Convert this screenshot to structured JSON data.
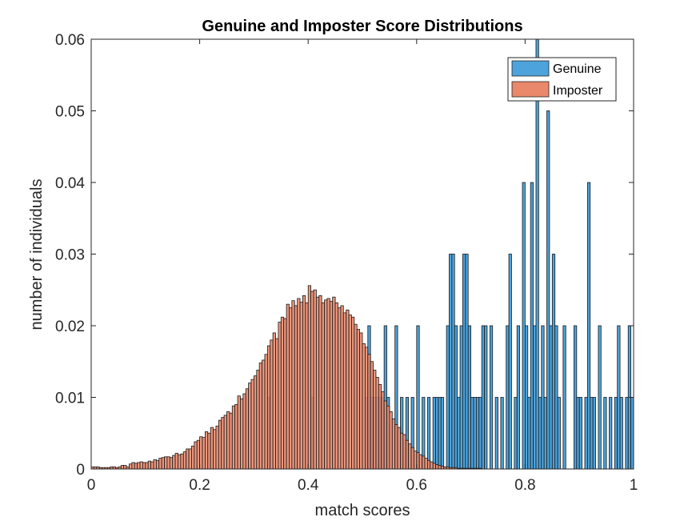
{
  "chart_data": {
    "type": "bar",
    "title": "Genuine and Imposter Score Distributions",
    "xlabel": "match scores",
    "ylabel": "number of individuals",
    "xlim": [
      0,
      1
    ],
    "ylim": [
      0,
      0.06
    ],
    "xticks": [
      0,
      0.2,
      0.4,
      0.6,
      0.8,
      1
    ],
    "xtick_labels": [
      "0",
      "0.2",
      "0.4",
      "0.6",
      "0.8",
      "1"
    ],
    "yticks": [
      0,
      0.01,
      0.02,
      0.03,
      0.04,
      0.05,
      0.06
    ],
    "ytick_labels": [
      "0",
      "0.01",
      "0.02",
      "0.03",
      "0.04",
      "0.05",
      "0.06"
    ],
    "grid": false,
    "legend_position": "top-right",
    "bin_width": 0.005,
    "series": [
      {
        "name": "Genuine",
        "color": "#4DA3DB",
        "points": [
          [
            0.3275,
            0.01
          ],
          [
            0.4075,
            0.01
          ],
          [
            0.5325,
            0.01
          ],
          [
            0.5725,
            0.01
          ],
          [
            0.5925,
            0.01
          ],
          [
            0.6125,
            0.01
          ],
          [
            0.6325,
            0.01
          ],
          [
            0.6425,
            0.01
          ],
          [
            0.5075,
            0.01
          ],
          [
            0.5125,
            0.02
          ],
          [
            0.5175,
            0.01
          ],
          [
            0.5225,
            0.01
          ],
          [
            0.5275,
            0.01
          ],
          [
            0.5375,
            0.01
          ],
          [
            0.5425,
            0.02
          ],
          [
            0.5475,
            0.01
          ],
          [
            0.5625,
            0.02
          ],
          [
            0.5825,
            0.01
          ],
          [
            0.6025,
            0.02
          ],
          [
            0.6225,
            0.01
          ],
          [
            0.6375,
            0.01
          ],
          [
            0.6475,
            0.01
          ],
          [
            0.6575,
            0.02
          ],
          [
            0.6625,
            0.03
          ],
          [
            0.6675,
            0.03
          ],
          [
            0.6725,
            0.02
          ],
          [
            0.6775,
            0.01
          ],
          [
            0.6825,
            0.02
          ],
          [
            0.6875,
            0.03
          ],
          [
            0.6925,
            0.03
          ],
          [
            0.6975,
            0.02
          ],
          [
            0.7025,
            0.01
          ],
          [
            0.7075,
            0.01
          ],
          [
            0.7125,
            0.01
          ],
          [
            0.7175,
            0.01
          ],
          [
            0.7225,
            0.02
          ],
          [
            0.7275,
            0.02
          ],
          [
            0.7375,
            0.02
          ],
          [
            0.7475,
            0.01
          ],
          [
            0.7575,
            0.01
          ],
          [
            0.7675,
            0.02
          ],
          [
            0.7725,
            0.03
          ],
          [
            0.7825,
            0.01
          ],
          [
            0.7875,
            0.02
          ],
          [
            0.7975,
            0.04
          ],
          [
            0.8025,
            0.02
          ],
          [
            0.8075,
            0.01
          ],
          [
            0.8125,
            0.04
          ],
          [
            0.8175,
            0.02
          ],
          [
            0.8225,
            0.06
          ],
          [
            0.8275,
            0.01
          ],
          [
            0.8325,
            0.02
          ],
          [
            0.8375,
            0.01
          ],
          [
            0.8425,
            0.05
          ],
          [
            0.8475,
            0.02
          ],
          [
            0.8525,
            0.03
          ],
          [
            0.8575,
            0.02
          ],
          [
            0.8625,
            0.01
          ],
          [
            0.8725,
            0.02
          ],
          [
            0.8925,
            0.02
          ],
          [
            0.8975,
            0.01
          ],
          [
            0.9025,
            0.01
          ],
          [
            0.9125,
            0.01
          ],
          [
            0.9175,
            0.04
          ],
          [
            0.9225,
            0.01
          ],
          [
            0.9275,
            0.01
          ],
          [
            0.9375,
            0.02
          ],
          [
            0.9475,
            0.01
          ],
          [
            0.9575,
            0.01
          ],
          [
            0.9675,
            0.01
          ],
          [
            0.9725,
            0.02
          ],
          [
            0.9775,
            0.01
          ],
          [
            0.9875,
            0.01
          ],
          [
            0.9925,
            0.02
          ],
          [
            0.9975,
            0.01
          ]
        ]
      },
      {
        "name": "Imposter",
        "color": "#E9886A",
        "points": [
          [
            0.0025,
            0.0003
          ],
          [
            0.0075,
            0.0003
          ],
          [
            0.0125,
            0.0003
          ],
          [
            0.0175,
            0.0002
          ],
          [
            0.0225,
            0.0002
          ],
          [
            0.0275,
            0.0002
          ],
          [
            0.0325,
            0.0002
          ],
          [
            0.0375,
            0.0003
          ],
          [
            0.0425,
            0.0003
          ],
          [
            0.0475,
            0.0002
          ],
          [
            0.0525,
            0.0003
          ],
          [
            0.0575,
            0.0005
          ],
          [
            0.0625,
            0.0005
          ],
          [
            0.0675,
            0.0003
          ],
          [
            0.0725,
            0.0007
          ],
          [
            0.0775,
            0.0009
          ],
          [
            0.0825,
            0.0008
          ],
          [
            0.0875,
            0.0009
          ],
          [
            0.0925,
            0.001
          ],
          [
            0.0975,
            0.0009
          ],
          [
            0.1025,
            0.0009
          ],
          [
            0.1075,
            0.0011
          ],
          [
            0.1125,
            0.001
          ],
          [
            0.1175,
            0.0013
          ],
          [
            0.1225,
            0.0012
          ],
          [
            0.1275,
            0.0015
          ],
          [
            0.1325,
            0.0016
          ],
          [
            0.1375,
            0.0017
          ],
          [
            0.1425,
            0.0017
          ],
          [
            0.1475,
            0.0016
          ],
          [
            0.1525,
            0.0019
          ],
          [
            0.1575,
            0.0022
          ],
          [
            0.1625,
            0.002
          ],
          [
            0.1675,
            0.0021
          ],
          [
            0.1725,
            0.0024
          ],
          [
            0.1775,
            0.0028
          ],
          [
            0.1825,
            0.0028
          ],
          [
            0.1875,
            0.0032
          ],
          [
            0.1925,
            0.0038
          ],
          [
            0.1975,
            0.004
          ],
          [
            0.2025,
            0.0045
          ],
          [
            0.2075,
            0.0044
          ],
          [
            0.2125,
            0.0052
          ],
          [
            0.2175,
            0.005
          ],
          [
            0.2225,
            0.0058
          ],
          [
            0.2275,
            0.0055
          ],
          [
            0.2325,
            0.006
          ],
          [
            0.2375,
            0.0068
          ],
          [
            0.2425,
            0.0072
          ],
          [
            0.2475,
            0.0075
          ],
          [
            0.2525,
            0.008
          ],
          [
            0.2575,
            0.0078
          ],
          [
            0.2625,
            0.0088
          ],
          [
            0.2675,
            0.009
          ],
          [
            0.2725,
            0.0102
          ],
          [
            0.2775,
            0.0098
          ],
          [
            0.2825,
            0.0105
          ],
          [
            0.2875,
            0.0112
          ],
          [
            0.2925,
            0.012
          ],
          [
            0.2975,
            0.0125
          ],
          [
            0.3025,
            0.013
          ],
          [
            0.3075,
            0.0138
          ],
          [
            0.3125,
            0.0148
          ],
          [
            0.3175,
            0.0152
          ],
          [
            0.3225,
            0.016
          ],
          [
            0.3275,
            0.0172
          ],
          [
            0.3325,
            0.018
          ],
          [
            0.3375,
            0.019
          ],
          [
            0.3425,
            0.0182
          ],
          [
            0.3475,
            0.0205
          ],
          [
            0.3525,
            0.0212
          ],
          [
            0.3575,
            0.021
          ],
          [
            0.3625,
            0.023
          ],
          [
            0.3675,
            0.0225
          ],
          [
            0.3725,
            0.0235
          ],
          [
            0.3775,
            0.0228
          ],
          [
            0.3825,
            0.0238
          ],
          [
            0.3875,
            0.0233
          ],
          [
            0.3925,
            0.0242
          ],
          [
            0.3975,
            0.0232
          ],
          [
            0.4025,
            0.0256
          ],
          [
            0.4075,
            0.0248
          ],
          [
            0.4125,
            0.025
          ],
          [
            0.4175,
            0.024
          ],
          [
            0.4225,
            0.0242
          ],
          [
            0.4275,
            0.0232
          ],
          [
            0.4325,
            0.0236
          ],
          [
            0.4375,
            0.0238
          ],
          [
            0.4425,
            0.0234
          ],
          [
            0.4475,
            0.024
          ],
          [
            0.4525,
            0.0232
          ],
          [
            0.4575,
            0.0225
          ],
          [
            0.4625,
            0.0228
          ],
          [
            0.4675,
            0.0218
          ],
          [
            0.4725,
            0.0222
          ],
          [
            0.4775,
            0.0215
          ],
          [
            0.4825,
            0.0212
          ],
          [
            0.4875,
            0.0202
          ],
          [
            0.4925,
            0.0195
          ],
          [
            0.4975,
            0.019
          ],
          [
            0.5025,
            0.0175
          ],
          [
            0.5075,
            0.017
          ],
          [
            0.5125,
            0.016
          ],
          [
            0.5175,
            0.015
          ],
          [
            0.5225,
            0.0138
          ],
          [
            0.5275,
            0.0128
          ],
          [
            0.5325,
            0.0118
          ],
          [
            0.5375,
            0.0108
          ],
          [
            0.5425,
            0.0095
          ],
          [
            0.5475,
            0.0088
          ],
          [
            0.5525,
            0.008
          ],
          [
            0.5575,
            0.007
          ],
          [
            0.5625,
            0.0062
          ],
          [
            0.5675,
            0.0058
          ],
          [
            0.5725,
            0.005
          ],
          [
            0.5775,
            0.0048
          ],
          [
            0.5825,
            0.004
          ],
          [
            0.5875,
            0.0035
          ],
          [
            0.5925,
            0.003
          ],
          [
            0.5975,
            0.0025
          ],
          [
            0.6025,
            0.0023
          ],
          [
            0.6075,
            0.002
          ],
          [
            0.6125,
            0.0018
          ],
          [
            0.6175,
            0.0015
          ],
          [
            0.6225,
            0.0012
          ],
          [
            0.6275,
            0.001
          ],
          [
            0.6325,
            0.0008
          ],
          [
            0.6375,
            0.0006
          ],
          [
            0.6425,
            0.0005
          ],
          [
            0.6475,
            0.0004
          ],
          [
            0.6525,
            0.0003
          ],
          [
            0.6575,
            0.0003
          ],
          [
            0.6625,
            0.0002
          ],
          [
            0.6675,
            0.0002
          ],
          [
            0.6725,
            0.0002
          ],
          [
            0.6775,
            0.0001
          ],
          [
            0.6825,
            0.0001
          ],
          [
            0.6875,
            0.0001
          ],
          [
            0.6925,
            0.0001
          ],
          [
            0.6975,
            0.0001
          ],
          [
            0.7025,
            0.0001
          ],
          [
            0.7075,
            0.0001
          ],
          [
            0.7125,
            0.0001
          ],
          [
            0.7175,
            0.0001
          ]
        ]
      }
    ]
  }
}
